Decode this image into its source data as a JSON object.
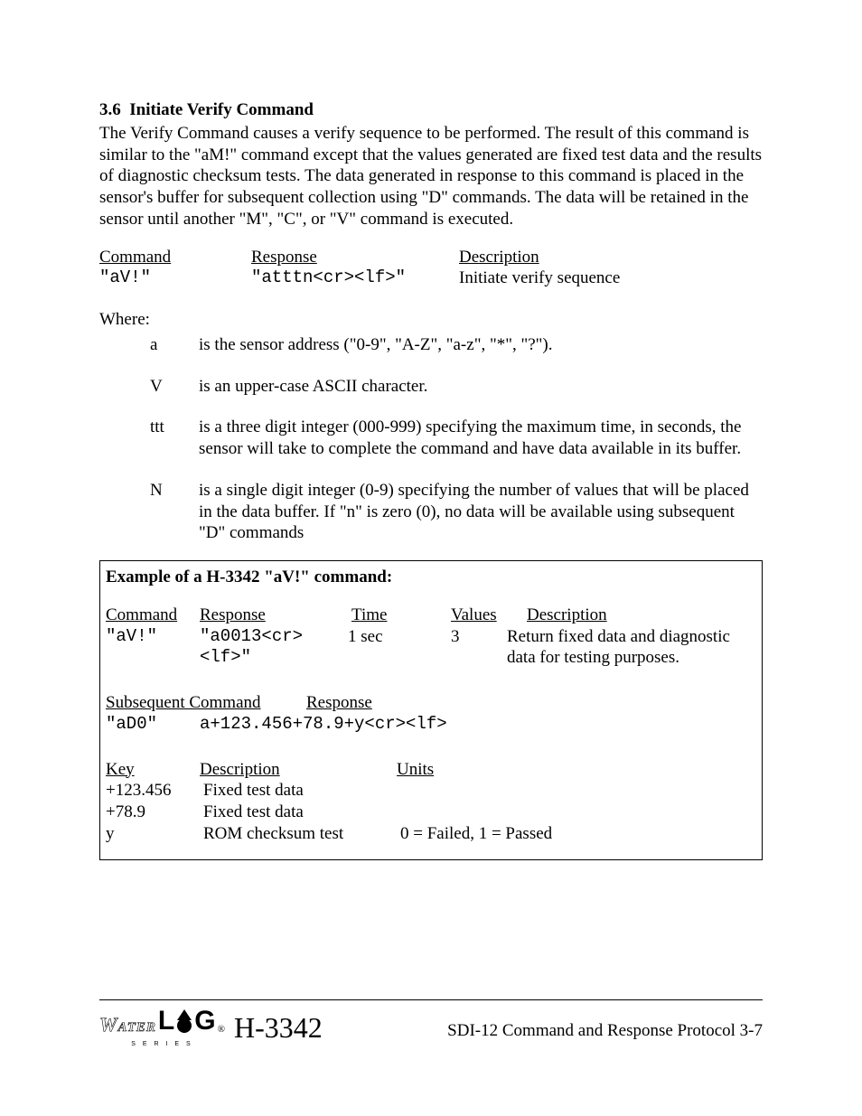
{
  "section": {
    "number": "3.6",
    "title": "Initiate Verify Command",
    "body": "The Verify Command causes a verify sequence to be performed.  The result of this command is similar to the \"aM!\" command except that the values generated are fixed test data and the results of diagnostic checksum tests.  The data generated in response to this command is placed in the sensor's buffer for subsequent collection using \"D\" commands.  The data will be retained in the sensor until another \"M\", \"C\", or \"V\" command is executed."
  },
  "cmd_table": {
    "headers": {
      "command": "Command",
      "response": "Response",
      "description": "Description"
    },
    "row": {
      "command": "\"aV!\"",
      "response": "\"atttn<cr><lf>\"",
      "description": "Initiate verify sequence"
    }
  },
  "where": {
    "label": "Where:",
    "items": [
      {
        "sym": "a",
        "desc": "is the sensor address (\"0-9\", \"A-Z\", \"a-z\", \"*\", \"?\")."
      },
      {
        "sym": "V",
        "desc": "is an upper-case ASCII character."
      },
      {
        "sym": "ttt",
        "desc": "is a three digit integer (000-999) specifying the maximum time, in seconds, the sensor will take to complete the command and have data available in its buffer."
      },
      {
        "sym": "N",
        "desc": "is a single digit integer (0-9) specifying the number of values that will be placed in the data buffer.  If  \"n\" is zero (0), no data will be available using subsequent \"D\" commands"
      }
    ]
  },
  "example": {
    "title": "Example of a H-3342 \"aV!\" command:",
    "headers1": {
      "command": "Command",
      "response": "Response",
      "time": "Time",
      "values": "Values",
      "description": "Description"
    },
    "row1": {
      "command": "\"aV!\"",
      "response": "\"a0013<cr><lf>\"",
      "time": "1 sec",
      "values": "3",
      "description": "Return fixed data and diagnostic data for testing purposes."
    },
    "headers2": {
      "subseq": "Subsequent Command",
      "response": "Response"
    },
    "row2": {
      "command": "\"aD0\"",
      "response": "a+123.456+78.9+y<cr><lf>"
    },
    "key_headers": {
      "key": "Key",
      "description": "Description",
      "units": "Units"
    },
    "key_rows": [
      {
        "key": "+123.456",
        "desc": "Fixed test data",
        "units": ""
      },
      {
        "key": "+78.9",
        "desc": "Fixed test data",
        "units": ""
      },
      {
        "key": "y",
        "desc": "ROM checksum test",
        "units": "0 = Failed, 1 = Passed"
      }
    ]
  },
  "footer": {
    "brand_water": "Water",
    "brand_l": "L",
    "brand_g": "G",
    "brand_reg": "®",
    "brand_series": "S  E  R  I  E  S",
    "model": "H-3342",
    "right": "SDI-12 Command and Response Protocol 3-7"
  }
}
